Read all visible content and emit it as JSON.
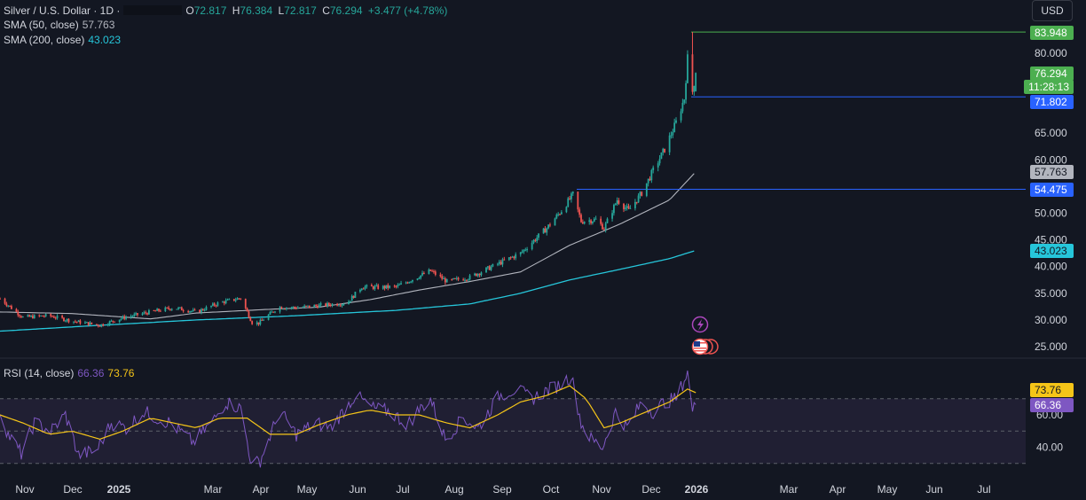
{
  "legend": {
    "symbol": "Silver / U.S. Dollar · 1D ·",
    "open_label": "O",
    "open": "72.817",
    "high_label": "H",
    "high": "76.384",
    "low_label": "L",
    "low": "72.817",
    "close_label": "C",
    "close": "76.294",
    "change": "+3.477 (+4.78%)",
    "sma50_label": "SMA (50, close)",
    "sma50_value": "57.763",
    "sma200_label": "SMA (200, close)",
    "sma200_value": "43.023",
    "rsi_label": "RSI (14, close)",
    "rsi_value": "66.36",
    "rsi_ma_value": "73.76"
  },
  "currency_button": "USD",
  "badges": {
    "high": "83.948",
    "price": "76.294",
    "countdown": "11:28:13",
    "line1": "71.802",
    "sma50": "57.763",
    "line2": "54.475",
    "sma200": "43.023",
    "rsi_ma": "73.76",
    "rsi": "66.36"
  },
  "colors": {
    "bg": "#131722",
    "up": "#26a69a",
    "down": "#ef5350",
    "grid": "#1e2230",
    "sma50": "#b2b5be",
    "sma200": "#26c6da",
    "hline": "#2962ff",
    "high_line": "#4caf50",
    "rsi": "#7e57c2",
    "rsi_ma": "#f5c518",
    "rsi_band": "#2a2440"
  },
  "chart_data": [
    {
      "type": "candlestick",
      "title": "Silver / U.S. Dollar · 1D",
      "ylim": [
        23,
        88
      ],
      "y_ticks": [
        "80.000",
        "65.000",
        "60.000",
        "50.000",
        "45.000",
        "40.000",
        "35.000",
        "30.000",
        "25.000"
      ],
      "x_ticks": [
        "Nov",
        "Dec",
        "2025",
        "Mar",
        "Apr",
        "May",
        "Jun",
        "Jul",
        "Aug",
        "Sep",
        "Oct",
        "Nov",
        "Dec",
        "2026",
        "Mar",
        "Apr",
        "May",
        "Jun",
        "Jul"
      ],
      "price_anchors": [
        [
          "2024-11-01",
          34.0
        ],
        [
          "2024-11-15",
          30.5
        ],
        [
          "2024-12-01",
          30.8
        ],
        [
          "2024-12-15",
          29.8
        ],
        [
          "2025-01-01",
          29.0
        ],
        [
          "2025-01-15",
          30.4
        ],
        [
          "2025-02-01",
          31.5
        ],
        [
          "2025-02-15",
          32.3
        ],
        [
          "2025-03-01",
          31.5
        ],
        [
          "2025-03-15",
          33.2
        ],
        [
          "2025-03-28",
          34.1
        ],
        [
          "2025-04-04",
          29.5
        ],
        [
          "2025-04-08",
          29.4
        ],
        [
          "2025-04-20",
          32.4
        ],
        [
          "2025-05-01",
          32.3
        ],
        [
          "2025-05-15",
          32.7
        ],
        [
          "2025-06-01",
          33.2
        ],
        [
          "2025-06-10",
          36.2
        ],
        [
          "2025-06-20",
          36.1
        ],
        [
          "2025-07-01",
          36.2
        ],
        [
          "2025-07-15",
          38.2
        ],
        [
          "2025-07-22",
          39.2
        ],
        [
          "2025-08-01",
          37.2
        ],
        [
          "2025-08-15",
          38.0
        ],
        [
          "2025-09-01",
          40.5
        ],
        [
          "2025-09-15",
          42.5
        ],
        [
          "2025-10-01",
          47.2
        ],
        [
          "2025-10-10",
          50.5
        ],
        [
          "2025-10-17",
          53.5
        ],
        [
          "2025-10-22",
          48.5
        ],
        [
          "2025-10-31",
          48.8
        ],
        [
          "2025-11-05",
          47.2
        ],
        [
          "2025-11-13",
          52.5
        ],
        [
          "2025-11-20",
          50.5
        ],
        [
          "2025-11-28",
          53.8
        ],
        [
          "2025-12-05",
          58.0
        ],
        [
          "2025-12-12",
          62.0
        ],
        [
          "2025-12-19",
          67.0
        ],
        [
          "2025-12-24",
          71.5
        ],
        [
          "2025-12-26",
          79.0
        ],
        [
          "2025-12-29",
          72.8
        ],
        [
          "2025-12-31",
          76.3
        ]
      ],
      "session": {
        "open": 72.817,
        "high": 76.384,
        "low": 72.817,
        "close": 76.294
      },
      "high_line": 83.948,
      "horizontal_lines": [
        71.802,
        54.475
      ],
      "sma50_anchors": [
        [
          "2024-11-01",
          31.5
        ],
        [
          "2024-12-15",
          31.2
        ],
        [
          "2025-02-01",
          30.2
        ],
        [
          "2025-03-01",
          31.3
        ],
        [
          "2025-04-15",
          32.0
        ],
        [
          "2025-05-15",
          32.4
        ],
        [
          "2025-06-15",
          33.8
        ],
        [
          "2025-07-15",
          35.6
        ],
        [
          "2025-08-15",
          37.2
        ],
        [
          "2025-09-15",
          39.0
        ],
        [
          "2025-10-15",
          44.0
        ],
        [
          "2025-11-15",
          48.0
        ],
        [
          "2025-12-15",
          52.5
        ],
        [
          "2025-12-31",
          57.763
        ]
      ],
      "sma200_anchors": [
        [
          "2024-11-01",
          27.9
        ],
        [
          "2025-01-01",
          29.0
        ],
        [
          "2025-03-01",
          30.0
        ],
        [
          "2025-05-01",
          30.8
        ],
        [
          "2025-07-01",
          31.8
        ],
        [
          "2025-08-15",
          33.0
        ],
        [
          "2025-09-15",
          35.0
        ],
        [
          "2025-10-15",
          37.5
        ],
        [
          "2025-11-15",
          39.5
        ],
        [
          "2025-12-15",
          41.5
        ],
        [
          "2025-12-31",
          43.023
        ]
      ]
    },
    {
      "type": "line",
      "title": "RSI (14, close)",
      "ylim": [
        25,
        90
      ],
      "y_ticks": [
        "60.00",
        "40.00"
      ],
      "bands": [
        30,
        50,
        70
      ],
      "rsi_anchors": [
        [
          "2024-11-01",
          62
        ],
        [
          "2024-11-06",
          48
        ],
        [
          "2024-11-14",
          36
        ],
        [
          "2024-11-22",
          55
        ],
        [
          "2024-12-02",
          50
        ],
        [
          "2024-12-11",
          60
        ],
        [
          "2024-12-19",
          35
        ],
        [
          "2024-12-30",
          38
        ],
        [
          "2025-01-08",
          55
        ],
        [
          "2025-01-17",
          52
        ],
        [
          "2025-01-28",
          62
        ],
        [
          "2025-02-05",
          58
        ],
        [
          "2025-02-13",
          55
        ],
        [
          "2025-02-27",
          43
        ],
        [
          "2025-03-11",
          56
        ],
        [
          "2025-03-19",
          68
        ],
        [
          "2025-03-28",
          64
        ],
        [
          "2025-04-04",
          28
        ],
        [
          "2025-04-09",
          32
        ],
        [
          "2025-04-21",
          62
        ],
        [
          "2025-05-01",
          48
        ],
        [
          "2025-05-13",
          55
        ],
        [
          "2025-05-22",
          52
        ],
        [
          "2025-06-06",
          72
        ],
        [
          "2025-06-17",
          64
        ],
        [
          "2025-06-27",
          62
        ],
        [
          "2025-07-08",
          54
        ],
        [
          "2025-07-14",
          62
        ],
        [
          "2025-07-22",
          70
        ],
        [
          "2025-07-31",
          45
        ],
        [
          "2025-08-11",
          58
        ],
        [
          "2025-08-20",
          52
        ],
        [
          "2025-09-02",
          72
        ],
        [
          "2025-09-12",
          76
        ],
        [
          "2025-09-22",
          70
        ],
        [
          "2025-10-01",
          75
        ],
        [
          "2025-10-08",
          78
        ],
        [
          "2025-10-16",
          84
        ],
        [
          "2025-10-22",
          55
        ],
        [
          "2025-10-28",
          45
        ],
        [
          "2025-11-04",
          40
        ],
        [
          "2025-11-12",
          62
        ],
        [
          "2025-11-19",
          52
        ],
        [
          "2025-11-28",
          68
        ],
        [
          "2025-12-05",
          62
        ],
        [
          "2025-12-12",
          68
        ],
        [
          "2025-12-19",
          70
        ],
        [
          "2025-12-26",
          86
        ],
        [
          "2025-12-29",
          62
        ],
        [
          "2025-12-31",
          66.36
        ]
      ],
      "rsi_ma_anchors": [
        [
          "2024-11-01",
          60
        ],
        [
          "2024-11-15",
          55
        ],
        [
          "2024-12-01",
          48
        ],
        [
          "2024-12-15",
          50
        ],
        [
          "2025-01-01",
          45
        ],
        [
          "2025-01-15",
          50
        ],
        [
          "2025-02-01",
          58
        ],
        [
          "2025-02-15",
          55
        ],
        [
          "2025-03-01",
          52
        ],
        [
          "2025-03-15",
          58
        ],
        [
          "2025-04-01",
          58
        ],
        [
          "2025-04-15",
          48
        ],
        [
          "2025-05-01",
          48
        ],
        [
          "2025-05-15",
          54
        ],
        [
          "2025-06-01",
          60
        ],
        [
          "2025-06-15",
          63
        ],
        [
          "2025-07-01",
          60
        ],
        [
          "2025-07-15",
          60
        ],
        [
          "2025-08-01",
          55
        ],
        [
          "2025-08-15",
          52
        ],
        [
          "2025-09-01",
          60
        ],
        [
          "2025-09-15",
          68
        ],
        [
          "2025-10-01",
          72
        ],
        [
          "2025-10-15",
          78
        ],
        [
          "2025-10-25",
          70
        ],
        [
          "2025-11-05",
          52
        ],
        [
          "2025-11-15",
          55
        ],
        [
          "2025-12-01",
          62
        ],
        [
          "2025-12-15",
          68
        ],
        [
          "2025-12-26",
          76
        ],
        [
          "2025-12-31",
          73.76
        ]
      ]
    }
  ]
}
